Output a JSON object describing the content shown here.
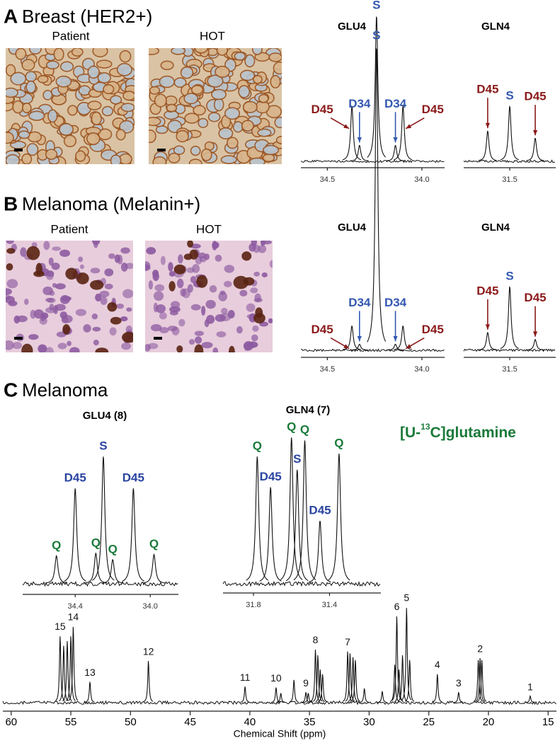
{
  "panels": [
    {
      "letter": "A",
      "title": "Breast (HER2+)",
      "images": [
        {
          "label": "Patient"
        },
        {
          "label": "HOT"
        }
      ],
      "spectra": [
        {
          "type": "spectrum",
          "title": "GLU4",
          "xlim": [
            34.64,
            33.88
          ],
          "xticks": [
            34.5,
            {
              "value": 34,
              "label": "34.0"
            }
          ],
          "ylim": [
            0,
            100
          ],
          "peaks": [
            {
              "x": 34.37,
              "intensity": 38,
              "label": "D45",
              "color": "#8b1a1a",
              "arrow": "right"
            },
            {
              "x": 34.33,
              "intensity": 11,
              "label": "D34",
              "color": "#3358b0",
              "arrow": "down"
            },
            {
              "x": 34.24,
              "intensity": 100,
              "label": "S",
              "color": "#3358b0"
            },
            {
              "x": 34.14,
              "intensity": 11,
              "label": "D34",
              "color": "#3358b0",
              "arrow": "down"
            },
            {
              "x": 34.1,
              "intensity": 38,
              "label": "D45",
              "color": "#8b1a1a",
              "arrow": "left"
            }
          ]
        },
        {
          "type": "spectrum",
          "title": "GLN4",
          "xlim": [
            31.74,
            31.26
          ],
          "xticks": [
            31.5
          ],
          "ylim": [
            0,
            100
          ],
          "peaks": [
            {
              "x": 31.615,
              "intensity": 55,
              "label": "D45",
              "color": "#8b1a1a",
              "arrow": "down"
            },
            {
              "x": 31.5,
              "intensity": 100,
              "label": "S",
              "color": "#3358b0"
            },
            {
              "x": 31.367,
              "intensity": 42,
              "label": "D45",
              "color": "#8b1a1a",
              "arrow": "down"
            }
          ]
        }
      ]
    },
    {
      "letter": "B",
      "title": "Melanoma (Melanin+)",
      "images": [
        {
          "label": "Patient"
        },
        {
          "label": "HOT"
        }
      ],
      "spectra": [
        {
          "type": "spectrum",
          "title": "GLU4",
          "xlim": [
            34.64,
            33.88
          ],
          "xticks": [
            34.5,
            {
              "value": 34,
              "label": "34.0"
            }
          ],
          "ylim": [
            0,
            100
          ],
          "peaks": [
            {
              "x": 34.37,
              "intensity": 8,
              "label": "D45",
              "color": "#8b1a1a",
              "arrow": "right"
            },
            {
              "x": 34.33,
              "intensity": 2,
              "label": "D34",
              "color": "#3358b0",
              "arrow": "down"
            },
            {
              "x": 34.24,
              "intensity": 100,
              "label": "S",
              "color": "#3358b0"
            },
            {
              "x": 34.14,
              "intensity": 2,
              "label": "D34",
              "color": "#3358b0",
              "arrow": "down"
            },
            {
              "x": 34.1,
              "intensity": 8,
              "label": "D45",
              "color": "#8b1a1a",
              "arrow": "left"
            }
          ]
        },
        {
          "type": "spectrum",
          "title": "GLN4",
          "xlim": [
            31.74,
            31.26
          ],
          "xticks": [
            31.5
          ],
          "ylim": [
            0,
            100
          ],
          "peaks": [
            {
              "x": 31.615,
              "intensity": 28,
              "label": "D45",
              "color": "#8b1a1a",
              "arrow": "down"
            },
            {
              "x": 31.5,
              "intensity": 100,
              "label": "S",
              "color": "#3358b0"
            },
            {
              "x": 31.367,
              "intensity": 17,
              "label": "D45",
              "color": "#8b1a1a",
              "arrow": "down"
            }
          ]
        }
      ]
    },
    {
      "letter": "C",
      "title": "Melanoma",
      "label": {
        "prefix": "[U-",
        "sup": "13",
        "suffix": "C]glutamine",
        "color": "#1a7a3a"
      },
      "spectra": [
        {
          "type": "spectrum",
          "title": "GLU4 (8)",
          "xlim": [
            34.68,
            33.85
          ],
          "xticks": [
            34.4,
            {
              "value": 34,
              "label": "34.0"
            }
          ],
          "ylim": [
            0,
            100
          ],
          "peaks": [
            {
              "x": 34.5,
              "intensity": 22,
              "label": "Q",
              "color": "#1a7a3a"
            },
            {
              "x": 34.4,
              "intensity": 75,
              "label": "D45",
              "color": "#2a44a0"
            },
            {
              "x": 34.29,
              "intensity": 24,
              "label": "Q",
              "color": "#1a7a3a"
            },
            {
              "x": 34.25,
              "intensity": 100,
              "label": "S",
              "color": "#2a44a0"
            },
            {
              "x": 34.2,
              "intensity": 19,
              "label": "Q",
              "color": "#1a7a3a"
            },
            {
              "x": 34.09,
              "intensity": 75,
              "label": "D45",
              "color": "#2a44a0"
            },
            {
              "x": 33.98,
              "intensity": 23,
              "label": "Q",
              "color": "#1a7a3a"
            }
          ]
        },
        {
          "type": "spectrum",
          "title": "GLN4 (7)",
          "xlim": [
            31.96,
            31.13
          ],
          "xticks": [
            31.8,
            31.4
          ],
          "ylim": [
            0,
            100
          ],
          "peaks": [
            {
              "x": 31.78,
              "intensity": 87,
              "label": "Q",
              "color": "#1a7a3a"
            },
            {
              "x": 31.71,
              "intensity": 66,
              "label": "D45",
              "color": "#2a44a0"
            },
            {
              "x": 31.6,
              "intensity": 100,
              "label": "Q",
              "color": "#1a7a3a"
            },
            {
              "x": 31.57,
              "intensity": 78,
              "label": "S",
              "color": "#2a44a0"
            },
            {
              "x": 31.53,
              "intensity": 98,
              "label": "Q",
              "color": "#1a7a3a"
            },
            {
              "x": 31.45,
              "intensity": 43,
              "label": "D45",
              "color": "#2a44a0"
            },
            {
              "x": 31.35,
              "intensity": 89,
              "label": "Q",
              "color": "#1a7a3a"
            }
          ]
        }
      ],
      "spectrum": {
        "type": "spectrum",
        "xlabel": "Chemical Shift (ppm)",
        "xlim": [
          60.7,
          14.3
        ],
        "xticks": [
          60,
          55,
          50,
          45,
          40,
          35,
          30,
          25,
          20,
          15
        ],
        "ylim": [
          0,
          100
        ],
        "peaks": [
          {
            "x": 55.9,
            "intensity": 70,
            "label": "15"
          },
          {
            "x": 55.6,
            "intensity": 60
          },
          {
            "x": 55.3,
            "intensity": 65
          },
          {
            "x": 55.0,
            "intensity": 70
          },
          {
            "x": 54.8,
            "intensity": 80,
            "label": "14"
          },
          {
            "x": 53.4,
            "intensity": 22,
            "label": "13"
          },
          {
            "x": 48.5,
            "intensity": 44,
            "label": "12"
          },
          {
            "x": 40.4,
            "intensity": 17,
            "label": "11"
          },
          {
            "x": 37.8,
            "intensity": 16,
            "label": "10"
          },
          {
            "x": 37.4,
            "intensity": 10
          },
          {
            "x": 36.3,
            "intensity": 24
          },
          {
            "x": 35.3,
            "intensity": 11,
            "label": "9"
          },
          {
            "x": 35.1,
            "intensity": 10
          },
          {
            "x": 34.5,
            "intensity": 56,
            "label": "8"
          },
          {
            "x": 34.3,
            "intensity": 50
          },
          {
            "x": 34.1,
            "intensity": 35
          },
          {
            "x": 33.9,
            "intensity": 30
          },
          {
            "x": 31.8,
            "intensity": 54,
            "label": "7"
          },
          {
            "x": 31.6,
            "intensity": 52
          },
          {
            "x": 31.35,
            "intensity": 48
          },
          {
            "x": 31.15,
            "intensity": 45
          },
          {
            "x": 30.4,
            "intensity": 15
          },
          {
            "x": 28.9,
            "intensity": 12
          },
          {
            "x": 27.85,
            "intensity": 40
          },
          {
            "x": 27.68,
            "intensity": 91,
            "label": "6"
          },
          {
            "x": 27.5,
            "intensity": 35
          },
          {
            "x": 27.2,
            "intensity": 50
          },
          {
            "x": 26.86,
            "intensity": 100,
            "label": "5"
          },
          {
            "x": 26.6,
            "intensity": 45
          },
          {
            "x": 24.28,
            "intensity": 30,
            "label": "4"
          },
          {
            "x": 22.5,
            "intensity": 11,
            "label": "3"
          },
          {
            "x": 20.85,
            "intensity": 45
          },
          {
            "x": 20.7,
            "intensity": 47,
            "label": "2"
          },
          {
            "x": 20.55,
            "intensity": 45
          },
          {
            "x": 16.5,
            "intensity": 7,
            "label": "1"
          }
        ]
      }
    }
  ]
}
